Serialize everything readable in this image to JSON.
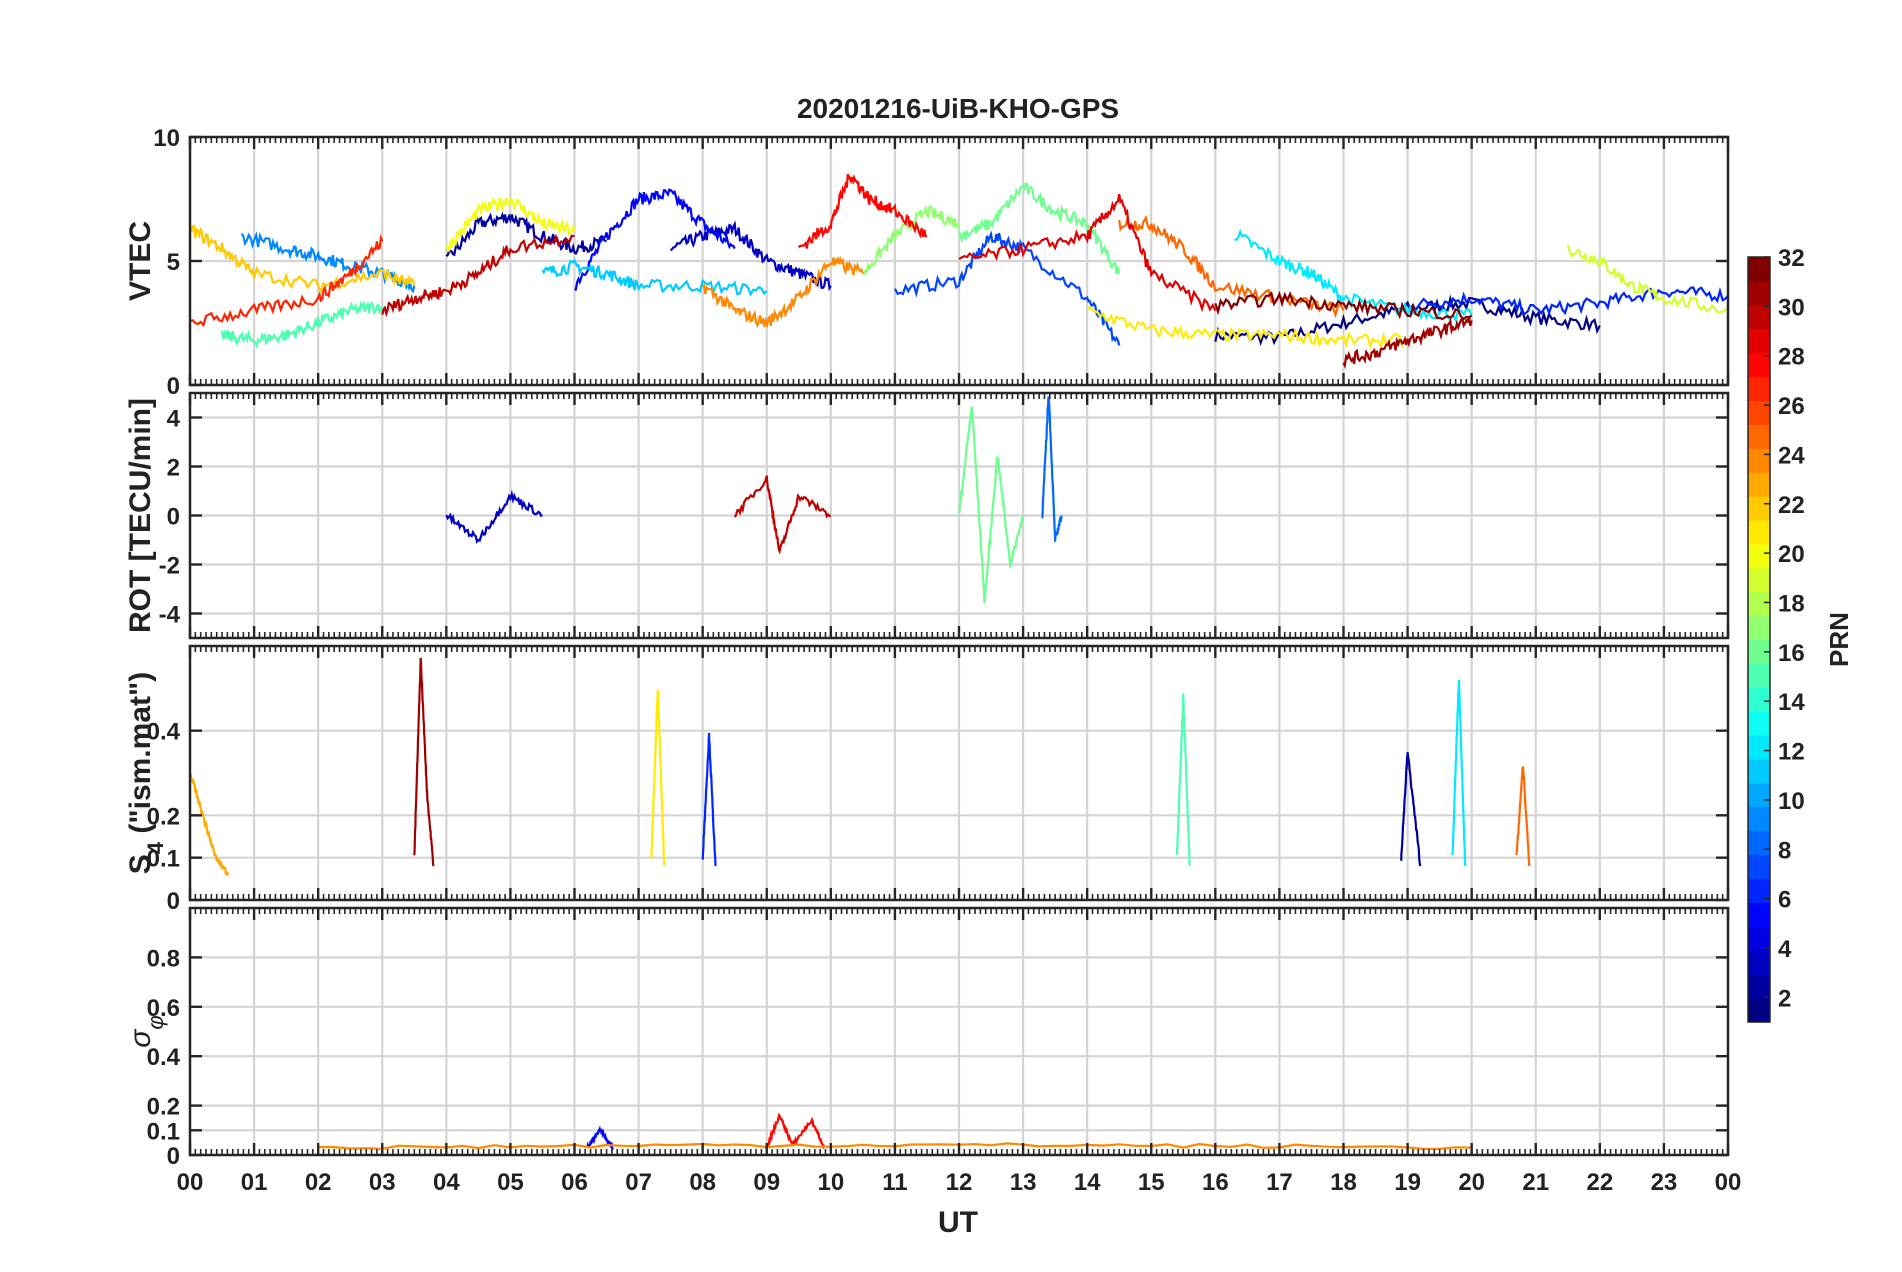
{
  "figure": {
    "title": "20201216-UiB-KHO-GPS",
    "xlabel": "UT",
    "x_tick_labels": [
      "00",
      "01",
      "02",
      "03",
      "04",
      "05",
      "06",
      "07",
      "08",
      "09",
      "10",
      "11",
      "12",
      "13",
      "14",
      "15",
      "16",
      "17",
      "18",
      "19",
      "20",
      "21",
      "22",
      "23",
      "00"
    ]
  },
  "colorbar": {
    "label": "PRN",
    "colormap": "jet",
    "range": [
      1,
      32
    ],
    "tick_values": [
      2,
      4,
      6,
      8,
      10,
      12,
      14,
      16,
      18,
      20,
      22,
      24,
      26,
      28,
      30,
      32
    ],
    "tick_labels": [
      "2",
      "4",
      "6",
      "8",
      "10",
      "12",
      "14",
      "16",
      "18",
      "20",
      "22",
      "24",
      "26",
      "28",
      "30",
      "32"
    ]
  },
  "chart_data": [
    {
      "panel": "vtec",
      "type": "line",
      "title": "20201216-UiB-KHO-GPS",
      "ylabel": "VTEC",
      "xlim": [
        0,
        24
      ],
      "ylim": [
        0,
        10
      ],
      "y_ticks": [
        0,
        5,
        10
      ],
      "y_tick_labels": [
        "0",
        "5",
        "10"
      ],
      "grid": true,
      "color_by": "PRN",
      "series": [
        {
          "prn": 1,
          "x": [
            16.0,
            17.0,
            18.0,
            19.0,
            20.0,
            21.0,
            22.0
          ],
          "y": [
            2.0,
            1.9,
            2.5,
            3.1,
            3.3,
            2.7,
            2.4
          ]
        },
        {
          "prn": 2,
          "x": [
            4.0,
            4.5,
            5.0,
            5.5,
            6.0,
            6.5
          ],
          "y": [
            5.0,
            6.5,
            6.8,
            6.0,
            5.5,
            5.8
          ]
        },
        {
          "prn": 3,
          "x": [
            7.5,
            8.0,
            8.5,
            9.0,
            9.5,
            10.0
          ],
          "y": [
            5.5,
            6.0,
            6.3,
            5.0,
            4.5,
            4.0
          ]
        },
        {
          "prn": 5,
          "x": [
            6.0,
            6.5,
            7.0,
            7.5,
            8.0,
            8.5
          ],
          "y": [
            4.0,
            6.0,
            7.5,
            7.7,
            6.5,
            5.5
          ]
        },
        {
          "prn": 6,
          "x": [
            19.0,
            20.0,
            21.0,
            22.0,
            23.0,
            24.0
          ],
          "y": [
            3.2,
            3.5,
            3.0,
            3.3,
            3.8,
            3.6
          ]
        },
        {
          "prn": 7,
          "x": [
            11.0,
            12.0,
            12.5,
            13.0,
            14.0,
            14.5
          ],
          "y": [
            3.8,
            4.2,
            6.0,
            5.5,
            3.5,
            1.6
          ]
        },
        {
          "prn": 9,
          "x": [
            0.8,
            1.5,
            2.0,
            2.5,
            3.0,
            3.5
          ],
          "y": [
            6.0,
            5.5,
            5.2,
            4.8,
            4.5,
            4.0
          ]
        },
        {
          "prn": 11,
          "x": [
            5.5,
            6.0,
            6.5,
            7.0,
            8.0,
            9.0
          ],
          "y": [
            4.5,
            4.8,
            4.5,
            4.0,
            4.0,
            3.8
          ]
        },
        {
          "prn": 12,
          "x": [
            16.3,
            17.0,
            17.5,
            18.0,
            19.0,
            20.0
          ],
          "y": [
            6.1,
            5.0,
            4.5,
            3.5,
            3.0,
            2.8
          ]
        },
        {
          "prn": 15,
          "x": [
            0.5,
            1.0,
            1.5,
            2.0,
            2.5,
            3.0
          ],
          "y": [
            2.0,
            1.8,
            2.0,
            2.5,
            3.0,
            3.2
          ]
        },
        {
          "prn": 16,
          "x": [
            12.0,
            12.5,
            13.0,
            13.5,
            14.0,
            14.5
          ],
          "y": [
            6.0,
            6.5,
            8.0,
            7.0,
            6.5,
            4.5
          ]
        },
        {
          "prn": 17,
          "x": [
            10.5,
            11.0,
            11.5,
            12.0
          ],
          "y": [
            4.5,
            6.0,
            7.0,
            6.5
          ]
        },
        {
          "prn": 19,
          "x": [
            21.5,
            22.0,
            22.5,
            23.0,
            24.0
          ],
          "y": [
            5.5,
            5.0,
            4.0,
            3.5,
            3.0
          ]
        },
        {
          "prn": 20,
          "x": [
            4.0,
            4.5,
            5.0,
            5.5,
            6.0
          ],
          "y": [
            5.5,
            7.0,
            7.5,
            6.5,
            6.2
          ]
        },
        {
          "prn": 21,
          "x": [
            14.0,
            15.0,
            16.0,
            17.0,
            18.0,
            19.0
          ],
          "y": [
            3.0,
            2.2,
            2.0,
            2.0,
            1.8,
            1.8
          ]
        },
        {
          "prn": 22,
          "x": [
            0.0,
            0.5,
            1.0,
            2.0,
            3.0,
            3.5
          ],
          "y": [
            6.3,
            5.5,
            4.5,
            4.0,
            4.5,
            4.0
          ]
        },
        {
          "prn": 24,
          "x": [
            8.0,
            8.5,
            9.0,
            9.5,
            10.0,
            10.5
          ],
          "y": [
            4.0,
            3.0,
            2.5,
            3.5,
            5.0,
            4.5
          ]
        },
        {
          "prn": 25,
          "x": [
            14.5,
            15.0,
            15.5,
            16.0,
            17.0,
            18.0
          ],
          "y": [
            6.5,
            6.5,
            5.5,
            4.0,
            3.5,
            3.0
          ]
        },
        {
          "prn": 27,
          "x": [
            0.0,
            1.0,
            2.0,
            2.5,
            3.0
          ],
          "y": [
            2.5,
            3.0,
            3.5,
            4.5,
            5.8
          ]
        },
        {
          "prn": 28,
          "x": [
            9.5,
            10.0,
            10.3,
            10.6,
            11.0,
            11.5
          ],
          "y": [
            5.5,
            6.5,
            8.5,
            7.5,
            7.0,
            6.0
          ]
        },
        {
          "prn": 29,
          "x": [
            12.0,
            13.0,
            14.0,
            14.5,
            15.0,
            16.0
          ],
          "y": [
            5.0,
            5.5,
            6.0,
            7.5,
            4.5,
            3.0
          ]
        },
        {
          "prn": 30,
          "x": [
            3.0,
            3.5,
            4.0,
            4.5,
            5.0,
            6.0
          ],
          "y": [
            3.0,
            3.5,
            3.8,
            4.5,
            5.5,
            6.0
          ]
        },
        {
          "prn": 31,
          "x": [
            18.0,
            18.5,
            19.0,
            19.5,
            20.0
          ],
          "y": [
            1.0,
            1.3,
            1.8,
            2.2,
            2.6
          ]
        },
        {
          "prn": 32,
          "x": [
            16.0,
            17.0,
            18.0,
            19.0,
            20.0
          ],
          "y": [
            3.2,
            3.5,
            3.2,
            3.0,
            2.8
          ]
        }
      ]
    },
    {
      "panel": "rot",
      "type": "line",
      "ylabel": "ROT [TECU/min]",
      "xlim": [
        0,
        24
      ],
      "ylim": [
        -5,
        5
      ],
      "y_ticks": [
        -4,
        -2,
        0,
        2,
        4
      ],
      "y_tick_labels": [
        "-4",
        "-2",
        "0",
        "2",
        "4"
      ],
      "grid": true,
      "color_by": "PRN",
      "series": [
        {
          "prn": 16,
          "x": [
            12.0,
            12.2,
            12.4,
            12.6,
            12.8,
            13.0
          ],
          "y": [
            0.0,
            4.5,
            -3.5,
            2.5,
            -2.0,
            0.0
          ]
        },
        {
          "prn": 8,
          "x": [
            13.3,
            13.4,
            13.5,
            13.6
          ],
          "y": [
            0.0,
            5.0,
            -1.0,
            0.0
          ]
        },
        {
          "prn": 30,
          "x": [
            8.5,
            9.0,
            9.2,
            9.5,
            10.0
          ],
          "y": [
            0.0,
            1.5,
            -1.5,
            0.8,
            0.0
          ]
        },
        {
          "prn": 3,
          "x": [
            4.0,
            4.5,
            5.0,
            5.5
          ],
          "y": [
            0.0,
            -1.0,
            0.8,
            0.0
          ]
        }
      ]
    },
    {
      "panel": "s4",
      "type": "line",
      "ylabel": "S4 (\"ism.mat\")",
      "ylabel_main": "S",
      "ylabel_sub": "4",
      "ylabel_rest": " (\"ism.mat\")",
      "xlim": [
        0,
        24
      ],
      "ylim": [
        0,
        0.6
      ],
      "y_ticks": [
        0,
        0.1,
        0.2,
        0.4
      ],
      "y_tick_labels": [
        "0",
        "0.1",
        "0.2",
        "0.4"
      ],
      "grid": true,
      "color_by": "PRN",
      "series": [
        {
          "prn": 31,
          "x": [
            3.5,
            3.6,
            3.7,
            3.8
          ],
          "y": [
            0.1,
            0.57,
            0.25,
            0.08
          ]
        },
        {
          "prn": 21,
          "x": [
            7.2,
            7.3,
            7.4
          ],
          "y": [
            0.1,
            0.5,
            0.08
          ]
        },
        {
          "prn": 6,
          "x": [
            8.0,
            8.1,
            8.2
          ],
          "y": [
            0.1,
            0.39,
            0.08
          ]
        },
        {
          "prn": 15,
          "x": [
            15.4,
            15.5,
            15.6
          ],
          "y": [
            0.1,
            0.48,
            0.08
          ]
        },
        {
          "prn": 2,
          "x": [
            18.9,
            19.0,
            19.2
          ],
          "y": [
            0.1,
            0.35,
            0.08
          ]
        },
        {
          "prn": 12,
          "x": [
            19.7,
            19.8,
            19.9
          ],
          "y": [
            0.1,
            0.52,
            0.08
          ]
        },
        {
          "prn": 25,
          "x": [
            20.7,
            20.8,
            20.9
          ],
          "y": [
            0.1,
            0.32,
            0.08
          ]
        },
        {
          "prn": 23,
          "x": [
            0.0,
            0.2,
            0.4,
            0.6
          ],
          "y": [
            0.3,
            0.2,
            0.1,
            0.06
          ]
        }
      ]
    },
    {
      "panel": "sigma_phi",
      "type": "line",
      "ylabel": "σφ",
      "ylabel_main": "σ",
      "ylabel_sub": "φ",
      "xlim": [
        0,
        24
      ],
      "ylim": [
        0,
        1
      ],
      "y_ticks": [
        0,
        0.1,
        0.2,
        0.4,
        0.6,
        0.8
      ],
      "y_tick_labels": [
        "0",
        "0.1",
        "0.2",
        "0.4",
        "0.6",
        "0.8"
      ],
      "grid": true,
      "color_by": "PRN",
      "series": [
        {
          "prn": 28,
          "x": [
            9.0,
            9.2,
            9.4,
            9.7,
            9.9
          ],
          "y": [
            0.03,
            0.16,
            0.04,
            0.14,
            0.03
          ]
        },
        {
          "prn": 5,
          "x": [
            6.2,
            6.4,
            6.6
          ],
          "y": [
            0.03,
            0.1,
            0.03
          ]
        },
        {
          "prn": 24,
          "x": [
            2.0,
            8.0,
            14.0,
            20.0
          ],
          "y": [
            0.03,
            0.04,
            0.04,
            0.03
          ]
        }
      ]
    }
  ]
}
